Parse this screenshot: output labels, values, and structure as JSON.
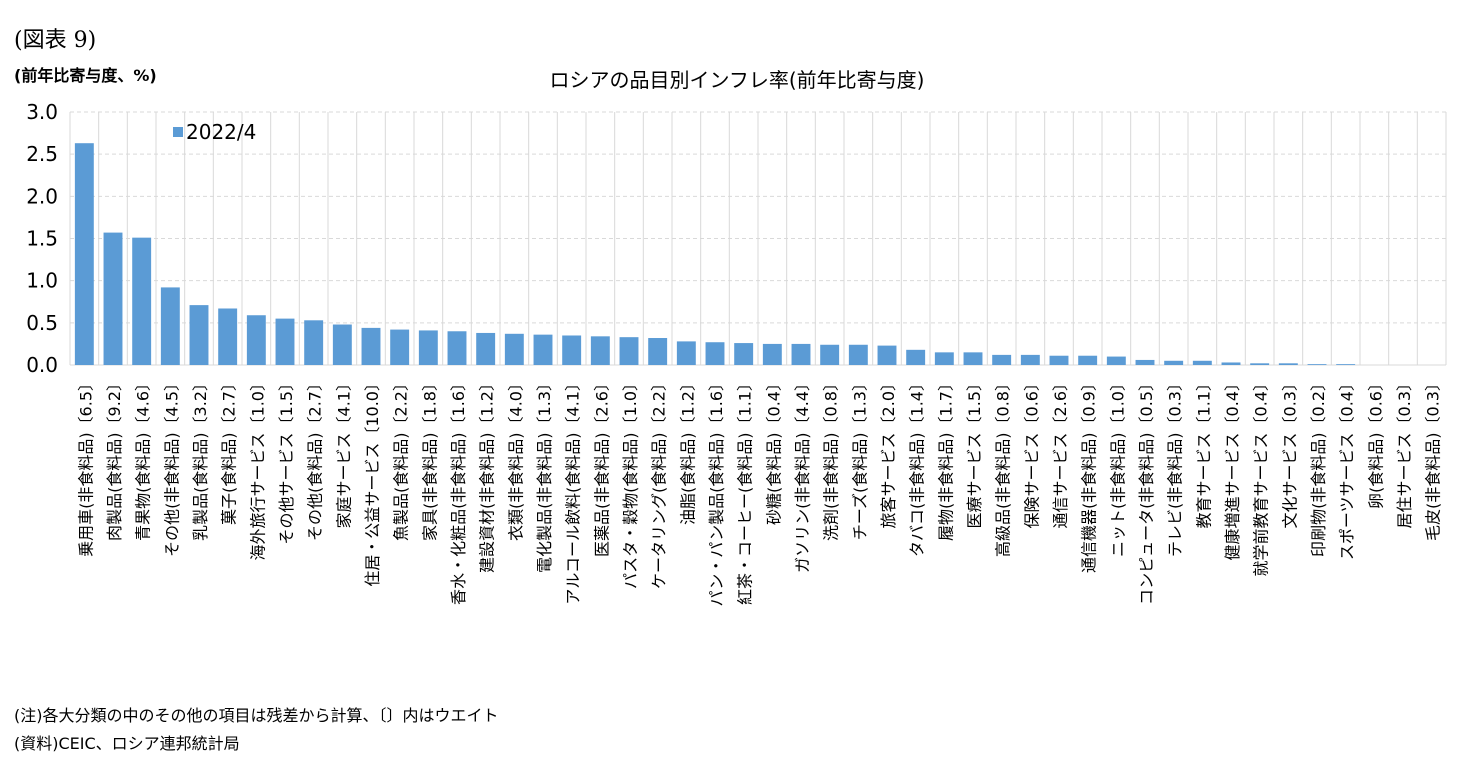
{
  "figure_label": "(図表 9)",
  "notes": [
    "(注)各大分類の中のその他の項目は残差から計算、〔〕内はウエイト",
    "(資料)CEIC、ロシア連邦統計局"
  ],
  "chart_data": {
    "type": "bar",
    "title": "ロシアの品目別インフレ率(前年比寄与度)",
    "ylabel": "(前年比寄与度、%)",
    "xlabel": "",
    "ylim": [
      0,
      3.0
    ],
    "yticks": [
      "0.0",
      "0.5",
      "1.0",
      "1.5",
      "2.0",
      "2.5",
      "3.0"
    ],
    "grid": true,
    "legend_position": "top-left",
    "series": [
      {
        "name": "2022/4",
        "color": "#5b9bd5"
      }
    ],
    "categories": [
      "乗用車(非食料品)〔6.5〕",
      "肉製品(食料品)〔9.2〕",
      "青果物(食料品)〔4.6〕",
      "その他(非食料品)〔4.5〕",
      "乳製品(食料品)〔3.2〕",
      "菓子(食料品)〔2.7〕",
      "海外旅行サービス〔1.0〕",
      "その他サービス〔1.5〕",
      "その他(食料品)〔2.7〕",
      "家庭サービス〔4.1〕",
      "住居・公益サービス〔10.0〕",
      "魚製品(食料品)〔2.2〕",
      "家具(非食料品)〔1.8〕",
      "香水・化粧品(非食料品)〔1.6〕",
      "建設資材(非食料品)〔1.2〕",
      "衣類(非食料品)〔4.0〕",
      "電化製品(非食料品)〔1.3〕",
      "アルコール飲料(食料品)〔4.1〕",
      "医薬品(非食料品)〔2.6〕",
      "パスタ・穀物(食料品)〔1.0〕",
      "ケータリング(食料品)〔2.2〕",
      "油脂(食料品)〔1.2〕",
      "パン・パン製品(食料品)〔1.6〕",
      "紅茶・コーヒー(食料品)〔1.1〕",
      "砂糖(食料品)〔0.4〕",
      "ガソリン(非食料品)〔4.4〕",
      "洗剤(非食料品)〔0.8〕",
      "チーズ(食料品)〔1.3〕",
      "旅客サービス〔2.0〕",
      "タバコ(非食料品)〔1.4〕",
      "履物(非食料品)〔1.7〕",
      "医療サービス〔1.5〕",
      "高級品(非食料品)〔0.8〕",
      "保険サービス〔0.6〕",
      "通信サービス〔2.6〕",
      "通信機器(非食料品)〔0.9〕",
      "ニット(非食料品)〔1.0〕",
      "コンピュータ(非食料品)〔0.5〕",
      "テレビ(非食料品)〔0.3〕",
      "教育サービス〔1.1〕",
      "健康増進サービス〔0.4〕",
      "就学前教育サービス〔0.4〕",
      "文化サービス〔0.3〕",
      "印刷物(非食料品)〔0.2〕",
      "スポーツサービス〔0.4〕",
      "卵(食料品)〔0.6〕",
      "居住サービス〔0.3〕",
      "毛皮(非食料品)〔0.3〕"
    ],
    "values": [
      2.63,
      1.57,
      1.51,
      0.92,
      0.71,
      0.67,
      0.59,
      0.55,
      0.53,
      0.48,
      0.44,
      0.42,
      0.41,
      0.4,
      0.38,
      0.37,
      0.36,
      0.35,
      0.34,
      0.33,
      0.32,
      0.28,
      0.27,
      0.26,
      0.25,
      0.25,
      0.24,
      0.24,
      0.23,
      0.18,
      0.15,
      0.15,
      0.12,
      0.12,
      0.11,
      0.11,
      0.1,
      0.06,
      0.05,
      0.05,
      0.03,
      0.02,
      0.02,
      0.01,
      0.01,
      0.0,
      0.0,
      0.0
    ]
  }
}
